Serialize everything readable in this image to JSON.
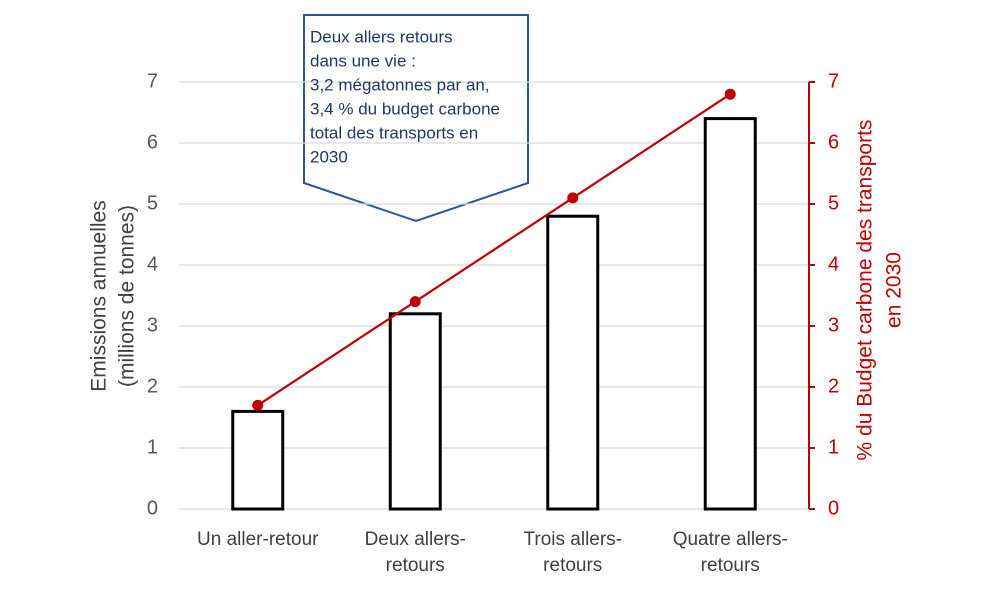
{
  "chart_data": {
    "type": "bar",
    "annotation": [
      "Deux allers retours",
      "dans une vie :",
      "3,2 mégatonnes par an,",
      "3,4 % du budget carbone",
      "total des transports en",
      "2030"
    ],
    "y_label": [
      "Emissions annuelles",
      "(millions de tonnes)"
    ],
    "y2_label": [
      "% du Budget carbone des transports",
      "en 2030"
    ],
    "categories": [
      [
        "Un aller-retour"
      ],
      [
        "Deux allers-",
        "retours"
      ],
      [
        "Trois allers-",
        "retours"
      ],
      [
        "Quatre allers-",
        "retours"
      ]
    ],
    "series": [
      {
        "type": "bar",
        "color": "#000000",
        "fill": "#ffffff",
        "values": [
          1.6,
          3.2,
          4.8,
          6.4
        ]
      },
      {
        "type": "line",
        "axis": "y2",
        "color": "#c00000",
        "values": [
          1.7,
          3.4,
          5.1,
          6.8
        ]
      }
    ],
    "ylim": [
      0,
      7
    ],
    "yticks": [
      0,
      1,
      2,
      3,
      4,
      5,
      6,
      7
    ],
    "y2lim": [
      0,
      7
    ],
    "y2ticks": [
      0,
      1,
      2,
      3,
      4,
      5,
      6,
      7
    ],
    "y2color": "#c00000",
    "grid": true
  }
}
